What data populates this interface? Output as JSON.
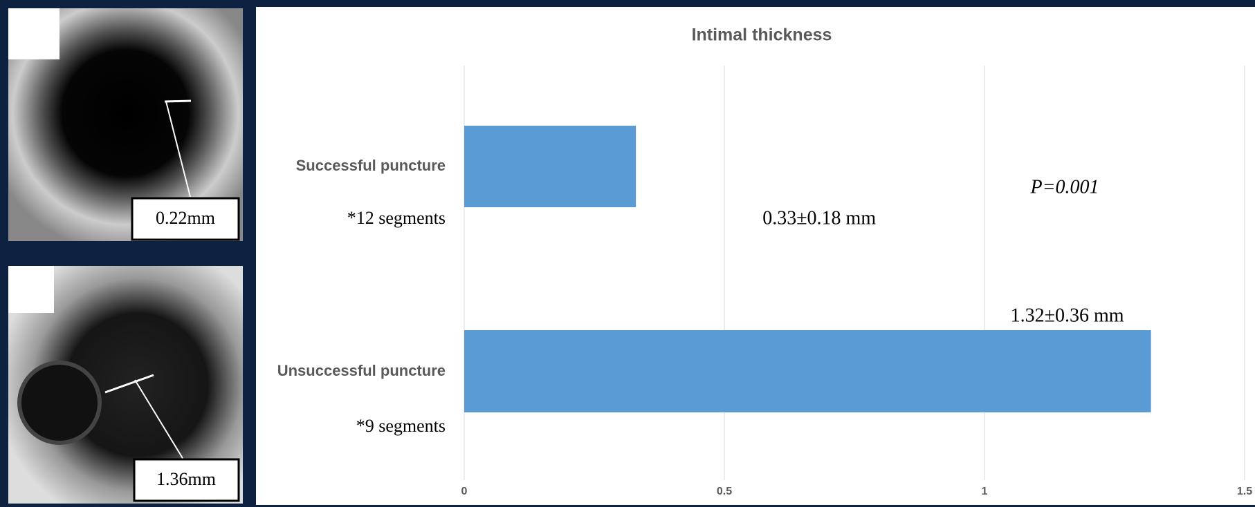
{
  "chart_data": {
    "type": "bar",
    "orientation": "horizontal",
    "title": "Intimal thickness",
    "categories": [
      "Successful puncture",
      "Unsuccessful puncture"
    ],
    "sublabels": [
      "*12 segments",
      "*9 segments"
    ],
    "values": [
      0.33,
      1.32
    ],
    "value_labels": [
      "0.33±0.18 mm",
      "1.32±0.36 mm"
    ],
    "color": "#5b9bd5",
    "annotation": "P=0.001",
    "xlim": [
      0,
      1.5
    ],
    "xticks": [
      0,
      0.5,
      1,
      1.5
    ],
    "grid": true
  },
  "images": [
    {
      "label": "0.22mm"
    },
    {
      "label": "1.36mm"
    }
  ]
}
